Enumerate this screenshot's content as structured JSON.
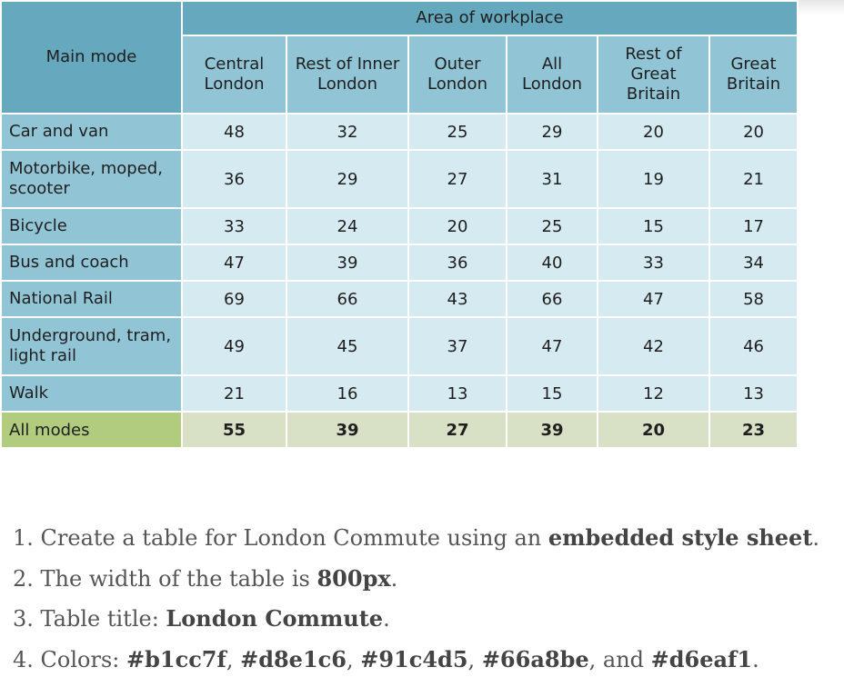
{
  "table": {
    "area_header": "Area of workplace",
    "row_header": "Main mode",
    "columns": [
      "Central\nLondon",
      "Rest of Inner\nLondon",
      "Outer\nLondon",
      "All\nLondon",
      "Rest of\nGreat\nBritain",
      "Great\nBritain"
    ],
    "rows": [
      {
        "label": "Car and van",
        "values": [
          "48",
          "32",
          "25",
          "29",
          "20",
          "20"
        ]
      },
      {
        "label": "Motorbike, moped,\nscooter",
        "values": [
          "36",
          "29",
          "27",
          "31",
          "19",
          "21"
        ]
      },
      {
        "label": "Bicycle",
        "values": [
          "33",
          "24",
          "20",
          "25",
          "15",
          "17"
        ]
      },
      {
        "label": "Bus and coach",
        "values": [
          "47",
          "39",
          "36",
          "40",
          "33",
          "34"
        ]
      },
      {
        "label": "National Rail",
        "values": [
          "69",
          "66",
          "43",
          "66",
          "47",
          "58"
        ]
      },
      {
        "label": "Underground, tram,\nlight rail",
        "values": [
          "49",
          "45",
          "37",
          "47",
          "42",
          "46"
        ]
      },
      {
        "label": "Walk",
        "values": [
          "21",
          "16",
          "13",
          "15",
          "12",
          "13"
        ]
      }
    ],
    "total": {
      "label": "All modes",
      "values": [
        "55",
        "39",
        "27",
        "39",
        "20",
        "23"
      ]
    }
  },
  "instructions": [
    {
      "num": "1.",
      "text": "Create a table for London Commute using an ",
      "bold": "embedded style sheet",
      "after": "."
    },
    {
      "num": "2.",
      "text": "The width of the table is ",
      "bold": "800px",
      "after": "."
    },
    {
      "num": "3.",
      "text": "Table title: ",
      "bold": "London Commute",
      "after": "."
    },
    {
      "num": "4.",
      "text": "Colors: ",
      "bold_parts": [
        "#b1cc7f",
        "#d8e1c6",
        "#91c4d5",
        "#66a8be",
        "#d6eaf1"
      ]
    }
  ],
  "colors": {
    "header_dark": "#66a8be",
    "header_light": "#91c4d5",
    "cell": "#d6eaf1",
    "total_label": "#b1cc7f",
    "total_cell": "#d8e1c6"
  }
}
